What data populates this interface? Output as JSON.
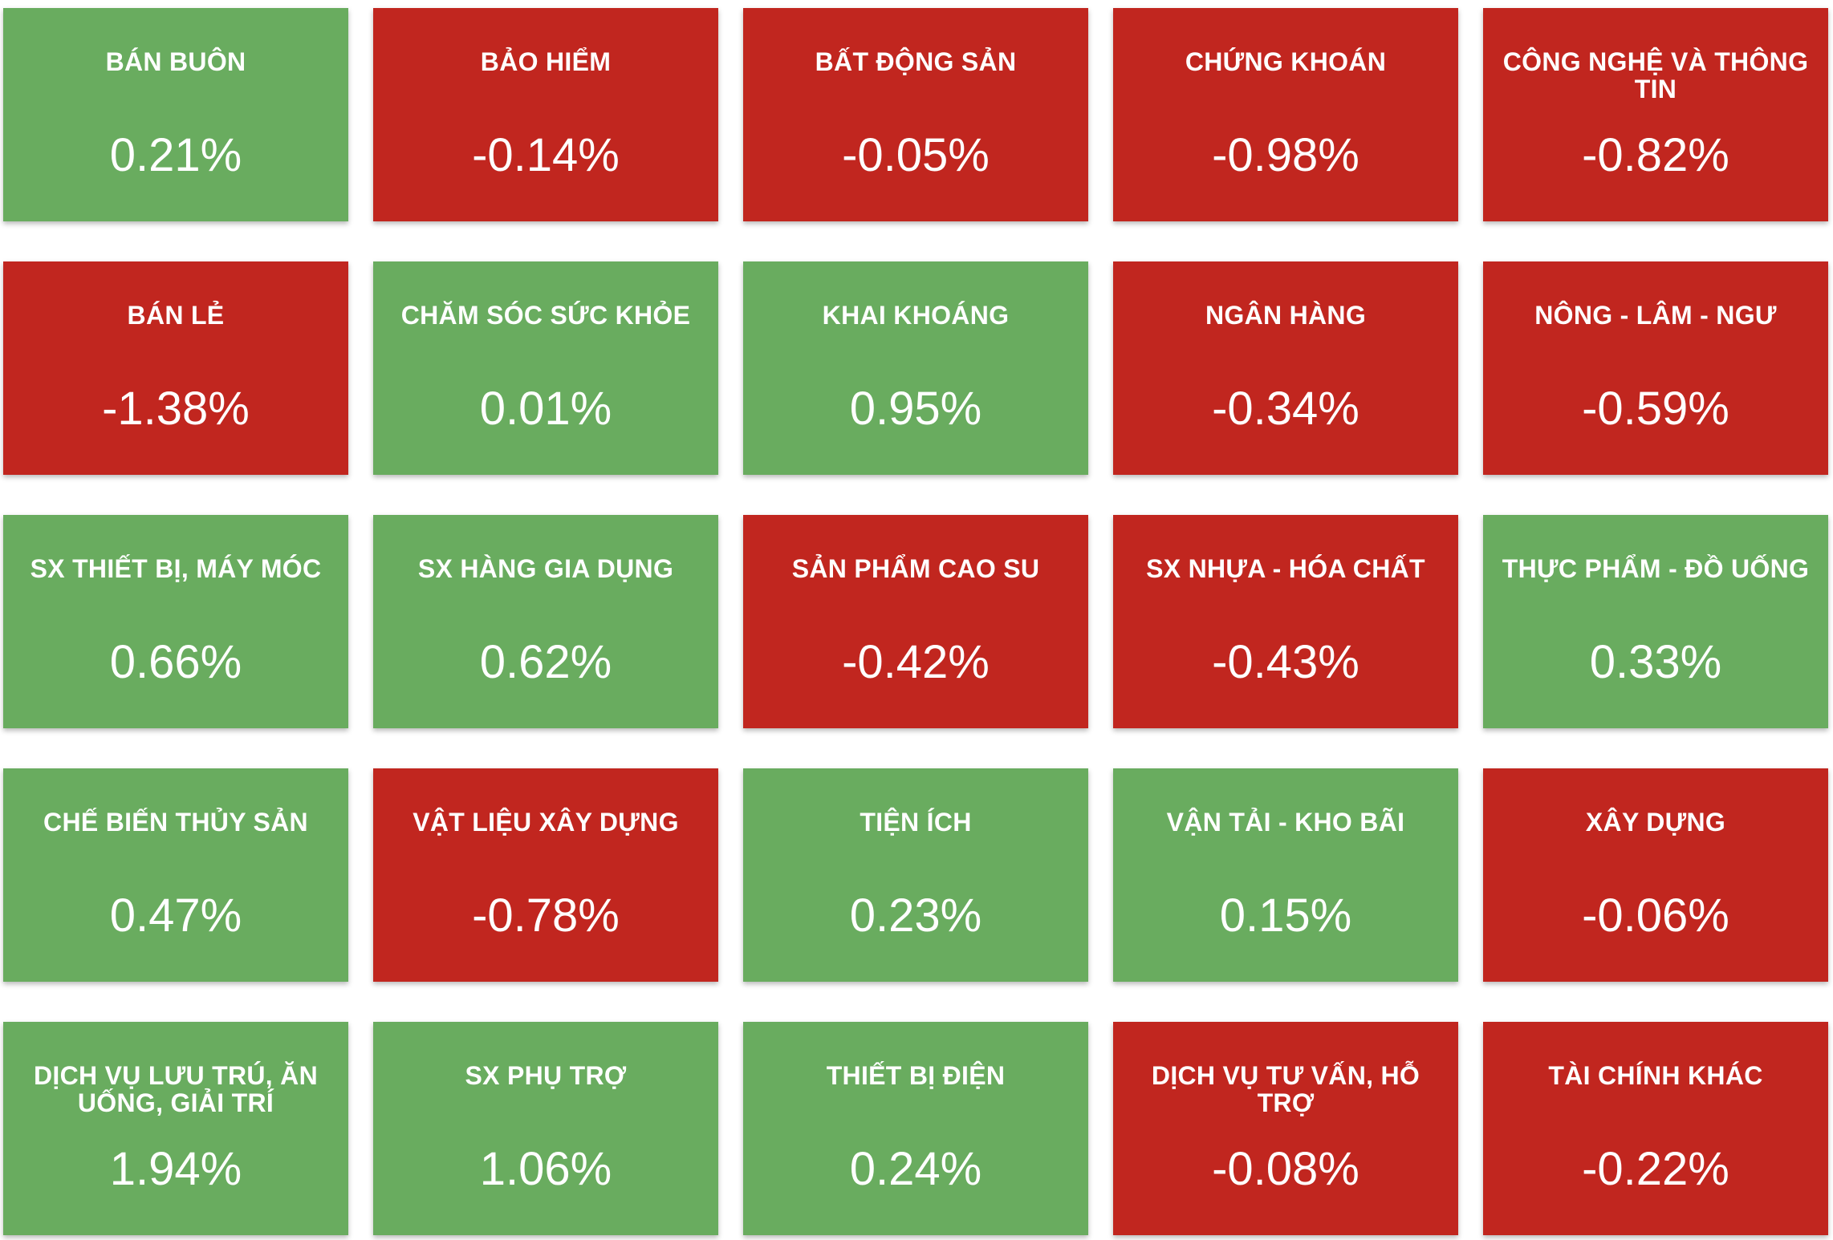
{
  "colors": {
    "positive": "#69ac5f",
    "negative": "#c1261f",
    "text": "#ffffff"
  },
  "sectors": [
    {
      "name": "BÁN BUÔN",
      "change": "0.21%",
      "direction": "up"
    },
    {
      "name": "BẢO HIỂM",
      "change": "-0.14%",
      "direction": "down"
    },
    {
      "name": "BẤT ĐỘNG SẢN",
      "change": "-0.05%",
      "direction": "down"
    },
    {
      "name": "CHỨNG KHOÁN",
      "change": "-0.98%",
      "direction": "down"
    },
    {
      "name": "CÔNG NGHỆ VÀ THÔNG TIN",
      "change": "-0.82%",
      "direction": "down"
    },
    {
      "name": "BÁN LẺ",
      "change": "-1.38%",
      "direction": "down"
    },
    {
      "name": "CHĂM SÓC SỨC KHỎE",
      "change": "0.01%",
      "direction": "up"
    },
    {
      "name": "KHAI KHOÁNG",
      "change": "0.95%",
      "direction": "up"
    },
    {
      "name": "NGÂN HÀNG",
      "change": "-0.34%",
      "direction": "down"
    },
    {
      "name": "NÔNG - LÂM - NGƯ",
      "change": "-0.59%",
      "direction": "down"
    },
    {
      "name": "SX THIẾT BỊ, MÁY MÓC",
      "change": "0.66%",
      "direction": "up"
    },
    {
      "name": "SX HÀNG GIA DỤNG",
      "change": "0.62%",
      "direction": "up"
    },
    {
      "name": "SẢN PHẨM CAO SU",
      "change": "-0.42%",
      "direction": "down"
    },
    {
      "name": "SX NHỰA - HÓA CHẤT",
      "change": "-0.43%",
      "direction": "down"
    },
    {
      "name": "THỰC PHẨM - ĐỒ UỐNG",
      "change": "0.33%",
      "direction": "up"
    },
    {
      "name": "CHẾ BIẾN THỦY SẢN",
      "change": "0.47%",
      "direction": "up"
    },
    {
      "name": "VẬT LIỆU XÂY DỰNG",
      "change": "-0.78%",
      "direction": "down"
    },
    {
      "name": "TIỆN ÍCH",
      "change": "0.23%",
      "direction": "up"
    },
    {
      "name": "VẬN TẢI - KHO BÃI",
      "change": "0.15%",
      "direction": "up"
    },
    {
      "name": "XÂY DỰNG",
      "change": "-0.06%",
      "direction": "down"
    },
    {
      "name": "DỊCH VỤ LƯU TRÚ, ĂN UỐNG, GIẢI TRÍ",
      "change": "1.94%",
      "direction": "up"
    },
    {
      "name": "SX PHỤ TRỢ",
      "change": "1.06%",
      "direction": "up"
    },
    {
      "name": "THIẾT BỊ ĐIỆN",
      "change": "0.24%",
      "direction": "up"
    },
    {
      "name": "DỊCH VỤ TƯ VẤN, HỖ TRỢ",
      "change": "-0.08%",
      "direction": "down"
    },
    {
      "name": "TÀI CHÍNH KHÁC",
      "change": "-0.22%",
      "direction": "down"
    }
  ]
}
